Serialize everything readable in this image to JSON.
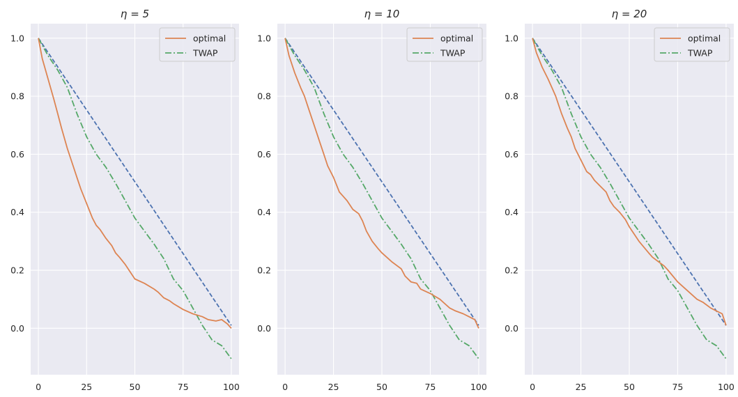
{
  "chart_data": [
    {
      "type": "line",
      "title": "η = 5",
      "xlim": [
        -4,
        104
      ],
      "ylim": [
        -0.16,
        1.05
      ],
      "xticks": [
        0,
        25,
        50,
        75,
        100
      ],
      "yticks": [
        "1.0",
        "0.8",
        "0.6",
        "0.4",
        "0.2",
        "0.0"
      ],
      "legend": {
        "position": "top-right",
        "entries": [
          "optimal",
          "TWAP"
        ]
      },
      "series": [
        {
          "name": "optimal",
          "color": "#dd8452",
          "style": "solid",
          "x": [
            0,
            2,
            5,
            8,
            10,
            12,
            15,
            18,
            20,
            22,
            25,
            28,
            30,
            32,
            35,
            38,
            40,
            42,
            45,
            48,
            50,
            55,
            60,
            62,
            65,
            68,
            70,
            75,
            80,
            85,
            88,
            92,
            95,
            98,
            100
          ],
          "y": [
            1.0,
            0.93,
            0.86,
            0.79,
            0.74,
            0.69,
            0.62,
            0.56,
            0.52,
            0.48,
            0.43,
            0.38,
            0.355,
            0.34,
            0.31,
            0.285,
            0.26,
            0.245,
            0.22,
            0.19,
            0.17,
            0.155,
            0.135,
            0.125,
            0.105,
            0.095,
            0.085,
            0.065,
            0.05,
            0.04,
            0.03,
            0.025,
            0.03,
            0.015,
            0.0
          ]
        },
        {
          "name": "TWAP",
          "color": "#55a868",
          "style": "dashdot",
          "x": [
            0,
            5,
            10,
            15,
            20,
            25,
            30,
            35,
            40,
            45,
            50,
            55,
            60,
            65,
            70,
            75,
            80,
            85,
            90,
            95,
            100
          ],
          "y": [
            1.0,
            0.94,
            0.89,
            0.83,
            0.74,
            0.66,
            0.6,
            0.555,
            0.5,
            0.44,
            0.38,
            0.335,
            0.29,
            0.24,
            0.17,
            0.13,
            0.07,
            0.01,
            -0.04,
            -0.06,
            -0.105
          ]
        },
        {
          "name": "linear",
          "color": "#4c72b0",
          "style": "dashed",
          "x": [
            0,
            100
          ],
          "y": [
            1.0,
            0.01
          ]
        }
      ]
    },
    {
      "type": "line",
      "title": "η = 10",
      "xlim": [
        -4,
        104
      ],
      "ylim": [
        -0.16,
        1.05
      ],
      "xticks": [
        0,
        25,
        50,
        75,
        100
      ],
      "yticks": [
        "1.0",
        "0.8",
        "0.6",
        "0.4",
        "0.2",
        "0.0"
      ],
      "legend": {
        "position": "top-right",
        "entries": [
          "optimal",
          "TWAP"
        ]
      },
      "series": [
        {
          "name": "optimal",
          "color": "#dd8452",
          "style": "solid",
          "x": [
            0,
            2,
            5,
            8,
            10,
            12,
            15,
            18,
            20,
            22,
            25,
            28,
            30,
            32,
            35,
            38,
            40,
            42,
            45,
            48,
            50,
            55,
            60,
            62,
            65,
            68,
            70,
            75,
            80,
            85,
            88,
            92,
            95,
            98,
            100
          ],
          "y": [
            1.0,
            0.94,
            0.88,
            0.83,
            0.8,
            0.76,
            0.7,
            0.64,
            0.6,
            0.56,
            0.52,
            0.47,
            0.455,
            0.44,
            0.41,
            0.395,
            0.37,
            0.335,
            0.3,
            0.275,
            0.26,
            0.23,
            0.205,
            0.18,
            0.16,
            0.155,
            0.135,
            0.12,
            0.1,
            0.07,
            0.06,
            0.05,
            0.04,
            0.03,
            0.0
          ]
        },
        {
          "name": "TWAP",
          "color": "#55a868",
          "style": "dashdot",
          "x": [
            0,
            5,
            10,
            15,
            20,
            25,
            30,
            35,
            40,
            45,
            50,
            55,
            60,
            65,
            70,
            75,
            80,
            85,
            90,
            95,
            100
          ],
          "y": [
            1.0,
            0.94,
            0.89,
            0.83,
            0.74,
            0.66,
            0.6,
            0.555,
            0.5,
            0.44,
            0.38,
            0.335,
            0.29,
            0.24,
            0.17,
            0.13,
            0.07,
            0.01,
            -0.04,
            -0.06,
            -0.105
          ]
        },
        {
          "name": "linear",
          "color": "#4c72b0",
          "style": "dashed",
          "x": [
            0,
            100
          ],
          "y": [
            1.0,
            0.01
          ]
        }
      ]
    },
    {
      "type": "line",
      "title": "η = 20",
      "xlim": [
        -4,
        104
      ],
      "ylim": [
        -0.16,
        1.05
      ],
      "xticks": [
        0,
        25,
        50,
        75,
        100
      ],
      "yticks": [
        "1.0",
        "0.8",
        "0.6",
        "0.4",
        "0.2",
        "0.0"
      ],
      "legend": {
        "position": "top-right",
        "entries": [
          "optimal",
          "TWAP"
        ]
      },
      "series": [
        {
          "name": "optimal",
          "color": "#dd8452",
          "style": "solid",
          "x": [
            0,
            2,
            5,
            8,
            10,
            12,
            15,
            18,
            20,
            22,
            25,
            28,
            30,
            32,
            35,
            38,
            40,
            42,
            45,
            48,
            50,
            55,
            60,
            62,
            65,
            68,
            70,
            75,
            80,
            85,
            88,
            92,
            95,
            98,
            100
          ],
          "y": [
            1.0,
            0.95,
            0.9,
            0.86,
            0.83,
            0.8,
            0.74,
            0.69,
            0.66,
            0.62,
            0.58,
            0.54,
            0.53,
            0.51,
            0.49,
            0.47,
            0.44,
            0.42,
            0.4,
            0.375,
            0.35,
            0.3,
            0.26,
            0.245,
            0.23,
            0.215,
            0.2,
            0.16,
            0.13,
            0.1,
            0.09,
            0.07,
            0.06,
            0.05,
            0.01
          ]
        },
        {
          "name": "TWAP",
          "color": "#55a868",
          "style": "dashdot",
          "x": [
            0,
            5,
            10,
            15,
            20,
            25,
            30,
            35,
            40,
            45,
            50,
            55,
            60,
            65,
            70,
            75,
            80,
            85,
            90,
            95,
            100
          ],
          "y": [
            1.0,
            0.94,
            0.89,
            0.83,
            0.74,
            0.66,
            0.6,
            0.555,
            0.5,
            0.44,
            0.38,
            0.335,
            0.29,
            0.24,
            0.17,
            0.13,
            0.07,
            0.01,
            -0.04,
            -0.06,
            -0.105
          ]
        },
        {
          "name": "linear",
          "color": "#4c72b0",
          "style": "dashed",
          "x": [
            0,
            100
          ],
          "y": [
            1.0,
            0.01
          ]
        }
      ]
    }
  ],
  "colors": {
    "axes_bg": "#eaeaf2",
    "grid": "#ffffff",
    "text": "#262626"
  }
}
